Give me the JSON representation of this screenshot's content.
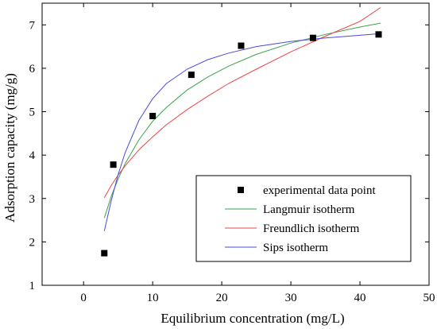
{
  "chart_data": {
    "type": "scatter",
    "title": "",
    "xlabel": "Equilibrium concentration (mg/L)",
    "ylabel": "Adsorption capacity (mg/g)",
    "xlim": [
      -6,
      50
    ],
    "ylim": [
      1,
      7.5
    ],
    "xticks": [
      0,
      10,
      20,
      30,
      40,
      50
    ],
    "yticks": [
      1,
      2,
      3,
      4,
      5,
      6,
      7
    ],
    "grid": false,
    "legend_position": "bottom-right",
    "points": {
      "name": "experimental data point",
      "x": [
        3.0,
        4.3,
        10.0,
        15.6,
        22.8,
        33.2,
        42.7
      ],
      "y": [
        1.74,
        3.78,
        4.9,
        5.85,
        6.52,
        6.7,
        6.78
      ]
    },
    "series": [
      {
        "name": "Langmuir isotherm",
        "color": "#3aa34a",
        "x": [
          3,
          4,
          5,
          6,
          8,
          10,
          12,
          15,
          18,
          21,
          25,
          30,
          35,
          40,
          43
        ],
        "y": [
          2.55,
          3.05,
          3.45,
          3.8,
          4.35,
          4.78,
          5.1,
          5.5,
          5.8,
          6.05,
          6.32,
          6.58,
          6.78,
          6.95,
          7.04
        ]
      },
      {
        "name": "Freundlich isotherm",
        "color": "#ef4444",
        "x": [
          3,
          4,
          5,
          6,
          8,
          10,
          12,
          15,
          18,
          21,
          25,
          30,
          35,
          40,
          43
        ],
        "y": [
          3.02,
          3.3,
          3.54,
          3.75,
          4.12,
          4.42,
          4.7,
          5.05,
          5.36,
          5.65,
          5.98,
          6.38,
          6.74,
          7.08,
          7.4
        ]
      },
      {
        "name": "Sips isotherm",
        "color": "#4a4adf",
        "x": [
          3,
          4,
          5,
          6,
          8,
          10,
          12,
          15,
          18,
          21,
          25,
          30,
          35,
          40,
          43
        ],
        "y": [
          2.25,
          2.95,
          3.55,
          4.05,
          4.8,
          5.3,
          5.65,
          5.98,
          6.2,
          6.35,
          6.5,
          6.62,
          6.7,
          6.76,
          6.8
        ]
      }
    ]
  }
}
